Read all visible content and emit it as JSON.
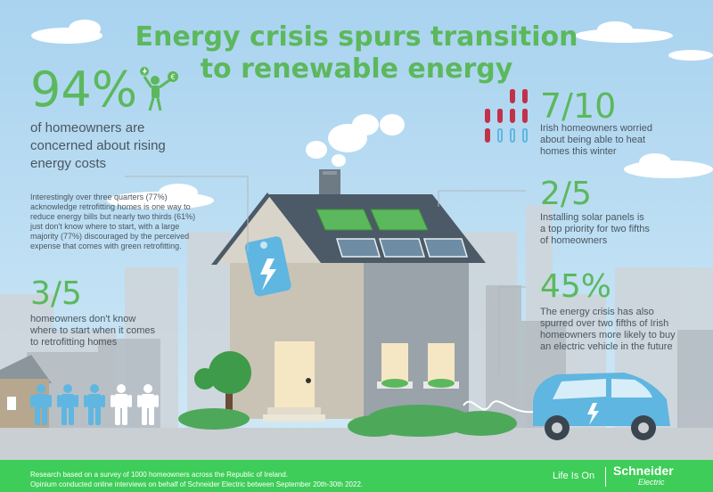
{
  "title": {
    "line1": "Energy crisis spurs transition",
    "line2": "to renewable energy"
  },
  "stat_94": {
    "value": "94%",
    "line1": "of homeowners are",
    "line2": "concerned about rising",
    "line3": "energy costs"
  },
  "note_paragraph": {
    "line1": "Interestingly over three quarters (77%)",
    "line2": "acknowledge retrofitting homes is one way to",
    "line3": "reduce energy bills but nearly two thirds (61%)",
    "line4": "just don't know where to start, with a large",
    "line5": "majority (77%) discouraged by the perceived",
    "line6": "expense that comes with green retrofitting."
  },
  "stat_3_5": {
    "value": "3/5",
    "line1": "homeowners don't know",
    "line2": "where to start when it comes",
    "line3": "to retrofitting homes"
  },
  "stat_7_10": {
    "value": "7/10",
    "line1": "Irish homeowners worried",
    "line2": "about being able to heat",
    "line3": "homes this winter",
    "hot_count": 7,
    "total": 10
  },
  "stat_2_5": {
    "value": "2/5",
    "line1": "Installing solar panels is",
    "line2": "a top priority for two fifths",
    "line3": "of homeowners"
  },
  "stat_45": {
    "value": "45%",
    "line1": "The energy crisis has also",
    "line2": "spurred over two fifths of Irish",
    "line3": "homeowners more likely to buy",
    "line4": "an electric vehicle in the future"
  },
  "people": {
    "highlighted": 3,
    "total": 5
  },
  "footer": {
    "line1": "Research based on a survey of  1000 homeowners across the Republic of Ireland.",
    "line2": "Opinium conducted online interviews on behalf of  Schneider Electric between September 20th-30th 2022.",
    "tagline": "Life Is On",
    "brand": "Schneider",
    "brand_sub": "Electric"
  },
  "icons": [
    "person-money-icon",
    "thermometer-icon",
    "person-icon",
    "lightning-icon",
    "euro-icon"
  ],
  "colors": {
    "accent_green": "#5cb85c",
    "brand_green": "#3dcd58",
    "hot_red": "#c0324a",
    "cold_blue": "#5fb6e0",
    "text_gray": "#4a5660"
  }
}
